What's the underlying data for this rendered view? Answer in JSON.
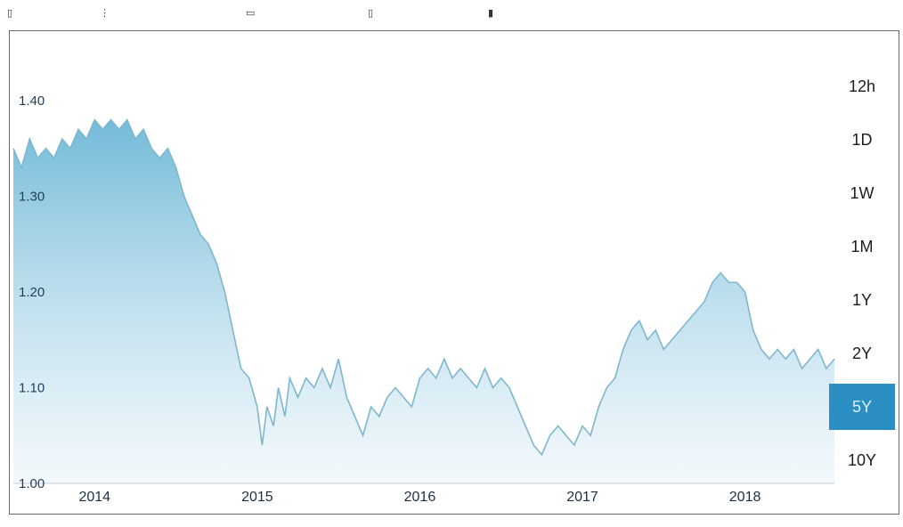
{
  "colors": {
    "line": "#7fb7ce",
    "fill_top": "#5aaed2",
    "fill_bottom": "#e6f2f8",
    "axis": "#c9c9c9",
    "active_range_bg": "#2c8fc4"
  },
  "range_selector": {
    "options": [
      "12h",
      "1D",
      "1W",
      "1M",
      "1Y",
      "2Y",
      "5Y",
      "10Y"
    ],
    "selected": "5Y"
  },
  "chart_data": {
    "type": "area",
    "title": "",
    "xlabel": "",
    "ylabel": "",
    "y_ticks": [
      "1.40",
      "1.30",
      "1.20",
      "1.10",
      "1.00"
    ],
    "y_tick_values": [
      1.4,
      1.3,
      1.2,
      1.1,
      1.0
    ],
    "ylim": [
      1.0,
      1.4
    ],
    "x_ticks": [
      "2014",
      "2015",
      "2016",
      "2017",
      "2018"
    ],
    "x_tick_values": [
      2014.0,
      2015.0,
      2016.0,
      2017.0,
      2018.0
    ],
    "xlim": [
      2013.5,
      2018.55
    ],
    "grid": false,
    "series": [
      {
        "x": [
          2013.5,
          2013.55,
          2013.6,
          2013.65,
          2013.7,
          2013.75,
          2013.8,
          2013.85,
          2013.9,
          2013.95,
          2014.0,
          2014.05,
          2014.1,
          2014.15,
          2014.2,
          2014.25,
          2014.3,
          2014.35,
          2014.4,
          2014.45,
          2014.5,
          2014.55,
          2014.6,
          2014.65,
          2014.7,
          2014.75,
          2014.8,
          2014.85,
          2014.9,
          2014.95,
          2015.0,
          2015.03,
          2015.06,
          2015.1,
          2015.13,
          2015.17,
          2015.2,
          2015.25,
          2015.3,
          2015.35,
          2015.4,
          2015.45,
          2015.5,
          2015.55,
          2015.6,
          2015.65,
          2015.7,
          2015.75,
          2015.8,
          2015.85,
          2015.9,
          2015.95,
          2016.0,
          2016.05,
          2016.1,
          2016.15,
          2016.2,
          2016.25,
          2016.3,
          2016.35,
          2016.4,
          2016.45,
          2016.5,
          2016.55,
          2016.6,
          2016.65,
          2016.7,
          2016.75,
          2016.8,
          2016.85,
          2016.9,
          2016.95,
          2017.0,
          2017.05,
          2017.1,
          2017.15,
          2017.2,
          2017.25,
          2017.3,
          2017.35,
          2017.4,
          2017.45,
          2017.5,
          2017.55,
          2017.6,
          2017.65,
          2017.7,
          2017.75,
          2017.8,
          2017.85,
          2017.9,
          2017.95,
          2018.0,
          2018.05,
          2018.1,
          2018.15,
          2018.2,
          2018.25,
          2018.3,
          2018.35,
          2018.4,
          2018.45,
          2018.5,
          2018.55
        ],
        "values": [
          1.35,
          1.33,
          1.36,
          1.34,
          1.35,
          1.34,
          1.36,
          1.35,
          1.37,
          1.36,
          1.38,
          1.37,
          1.38,
          1.37,
          1.38,
          1.36,
          1.37,
          1.35,
          1.34,
          1.35,
          1.33,
          1.3,
          1.28,
          1.26,
          1.25,
          1.23,
          1.2,
          1.16,
          1.12,
          1.11,
          1.08,
          1.04,
          1.08,
          1.06,
          1.1,
          1.07,
          1.11,
          1.09,
          1.11,
          1.1,
          1.12,
          1.1,
          1.13,
          1.09,
          1.07,
          1.05,
          1.08,
          1.07,
          1.09,
          1.1,
          1.09,
          1.08,
          1.11,
          1.12,
          1.11,
          1.13,
          1.11,
          1.12,
          1.11,
          1.1,
          1.12,
          1.1,
          1.11,
          1.1,
          1.08,
          1.06,
          1.04,
          1.03,
          1.05,
          1.06,
          1.05,
          1.04,
          1.06,
          1.05,
          1.08,
          1.1,
          1.11,
          1.14,
          1.16,
          1.17,
          1.15,
          1.16,
          1.14,
          1.15,
          1.16,
          1.17,
          1.18,
          1.19,
          1.21,
          1.22,
          1.21,
          1.21,
          1.2,
          1.16,
          1.14,
          1.13,
          1.14,
          1.13,
          1.14,
          1.12,
          1.13,
          1.14,
          1.12,
          1.13
        ]
      }
    ]
  }
}
